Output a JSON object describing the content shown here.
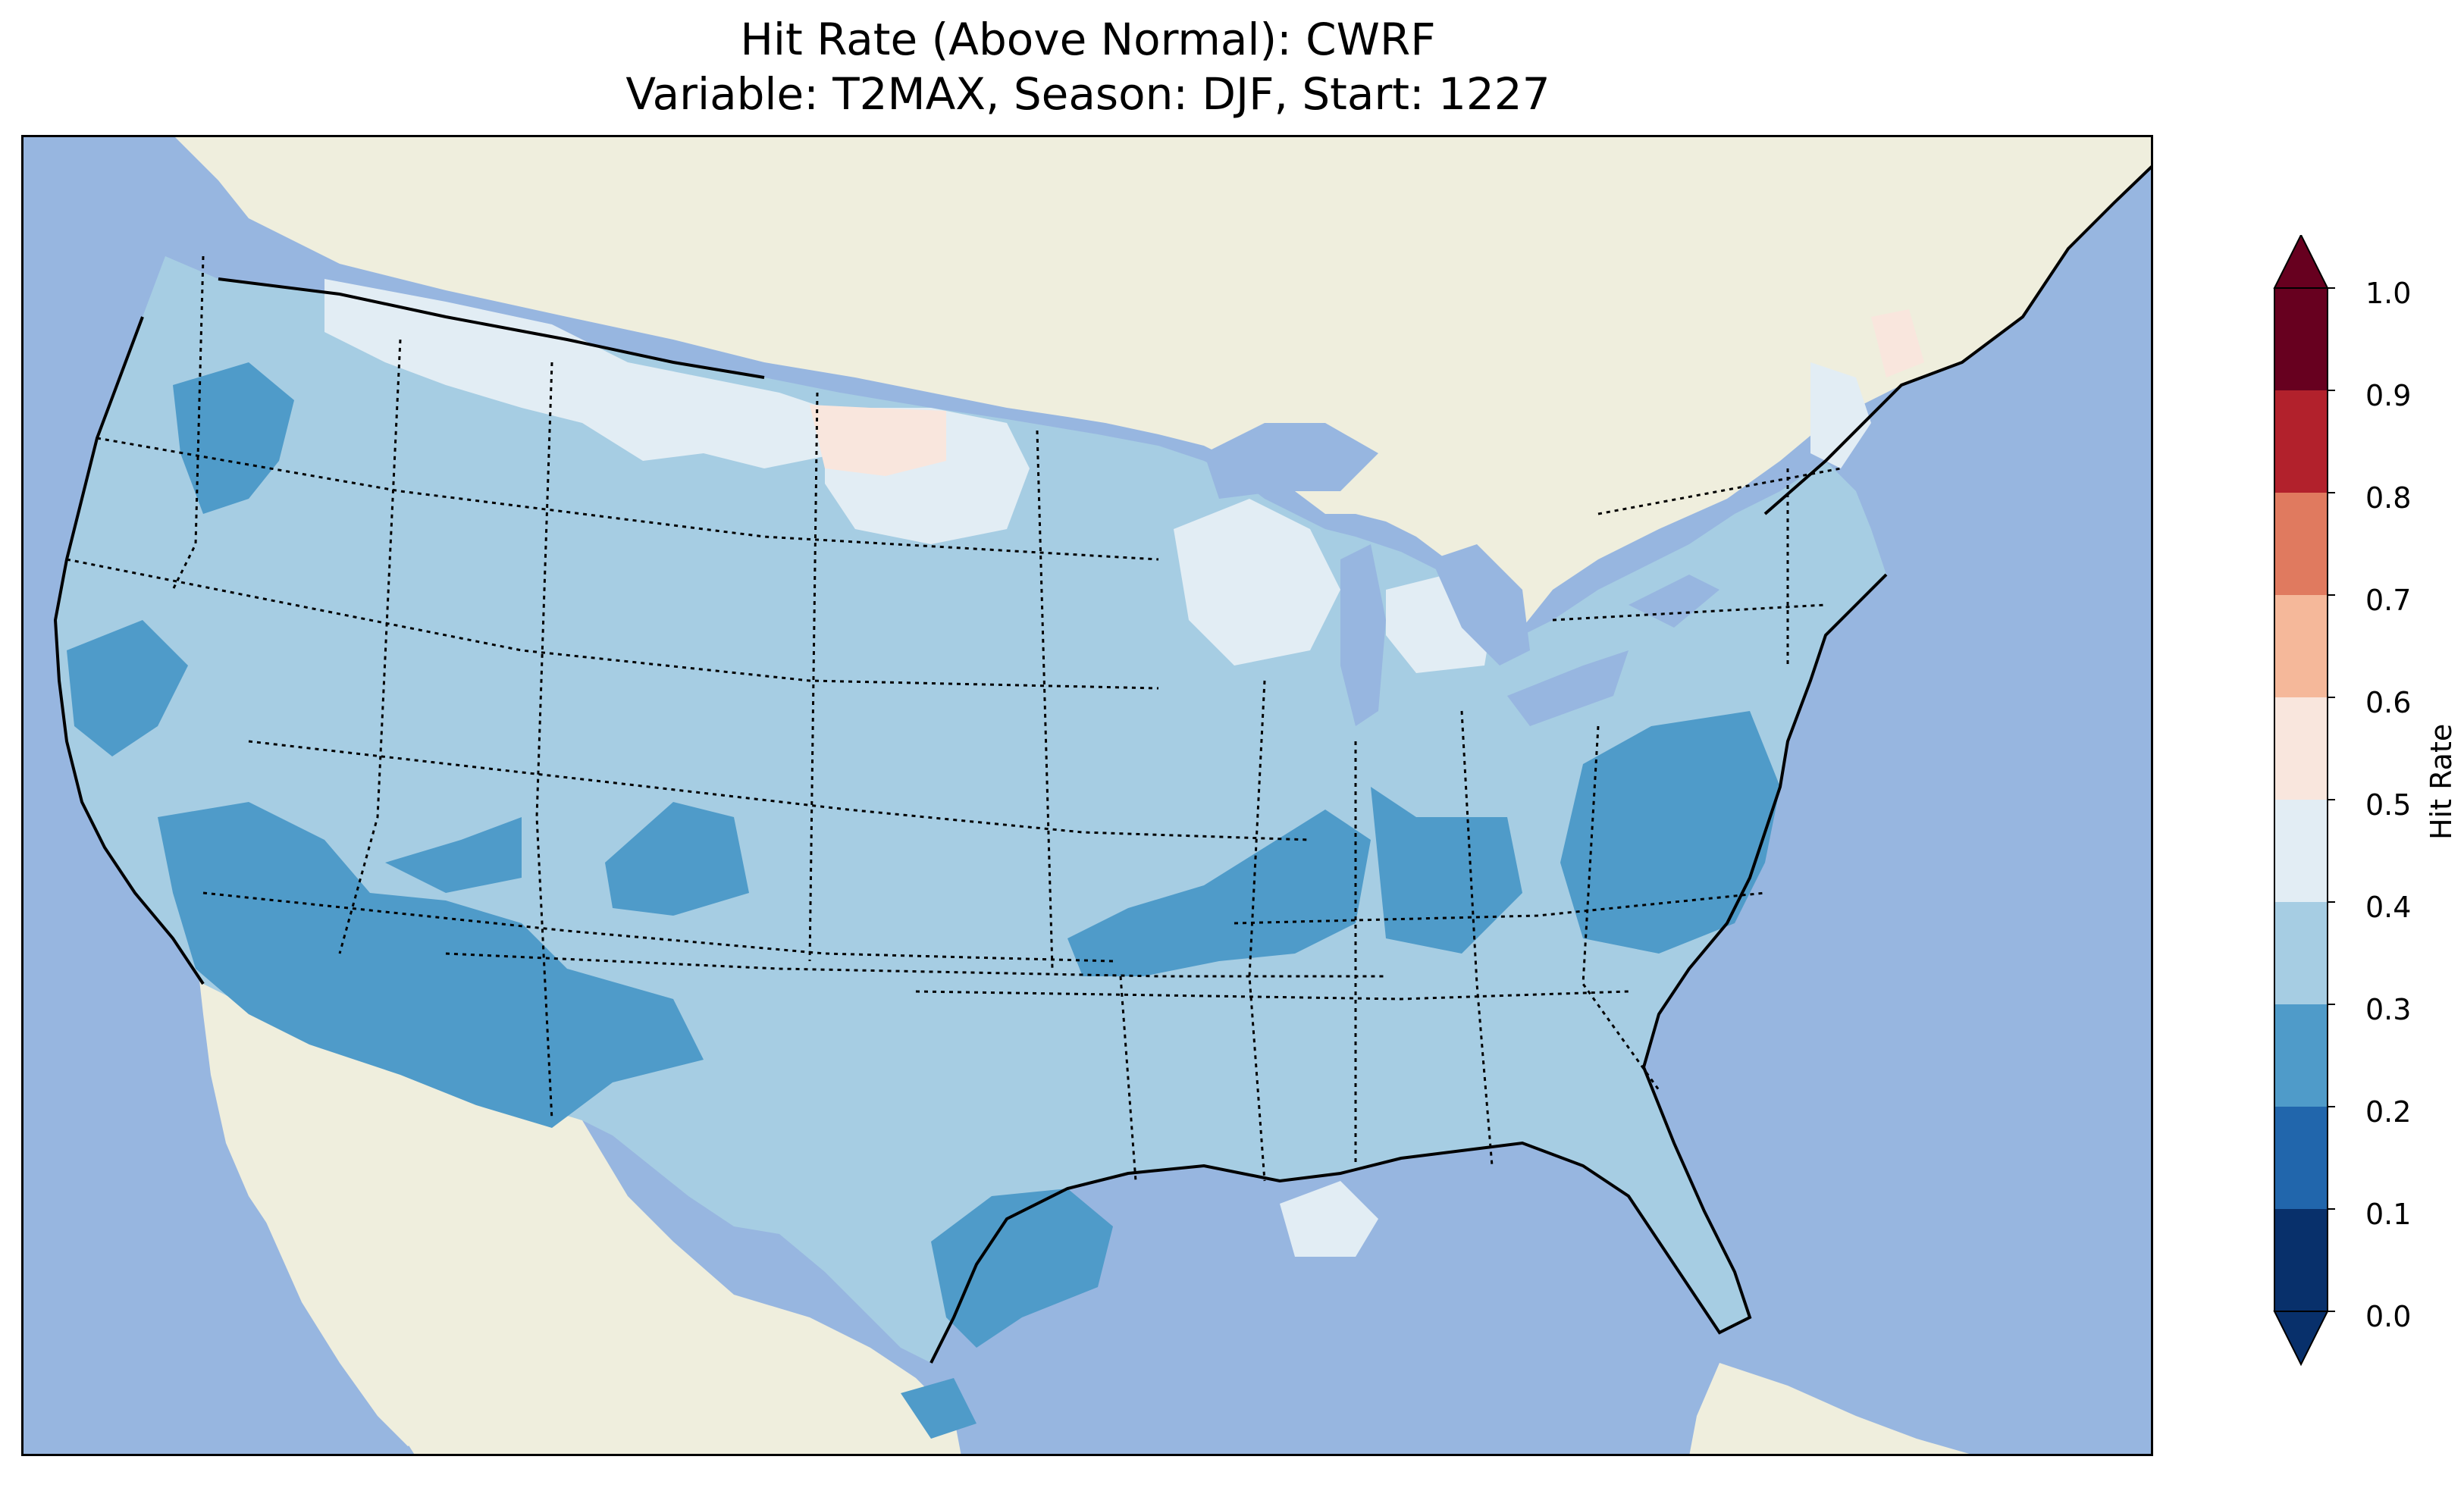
{
  "title": "Hit Rate (Above Normal): CWRF",
  "subtitle": "Variable: T2MAX, Season: DJF, Start: 1227",
  "colorbar": {
    "label": "Hit Rate",
    "ticks": [
      "0.0",
      "0.1",
      "0.2",
      "0.3",
      "0.4",
      "0.5",
      "0.6",
      "0.7",
      "0.8",
      "0.9",
      "1.0"
    ],
    "colors": [
      "#08306b",
      "#2166ac",
      "#4f9bc9",
      "#a6cde3",
      "#e2edf4",
      "#f9e6dd",
      "#f5b89a",
      "#e07a5f",
      "#b2212c",
      "#67001f"
    ],
    "extend": "both"
  },
  "colors": {
    "ocean": "#97b6e0",
    "land": "#efeedd",
    "light_blue": "#a6cde3",
    "mid_blue": "#4f9bc9",
    "very_light": "#e2edf4",
    "light_pink": "#f9e6dd"
  }
}
